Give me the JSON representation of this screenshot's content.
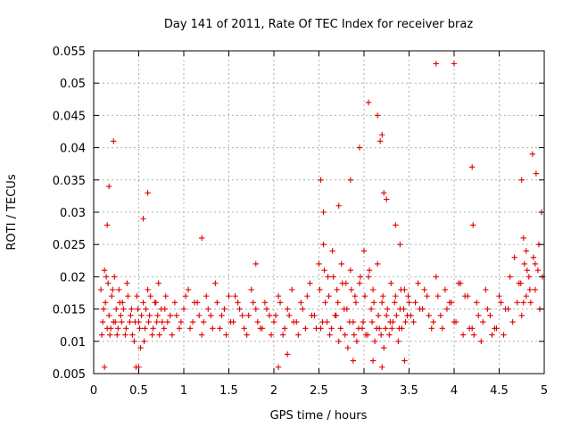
{
  "chart_data": {
    "type": "scatter",
    "title": "Day 141 of 2011, Rate Of TEC Index for receiver braz",
    "xlabel": "GPS time / hours",
    "ylabel": "ROTI / TECUs",
    "xlim": [
      0,
      5
    ],
    "ylim": [
      0.005,
      0.055
    ],
    "x_ticks": [
      0,
      0.5,
      1,
      1.5,
      2,
      2.5,
      3,
      3.5,
      4,
      4.5,
      5
    ],
    "x_tick_labels": [
      "0",
      "0.5",
      "1",
      "1.5",
      "2",
      "2.5",
      "3",
      "3.5",
      "4",
      "4.5",
      "5"
    ],
    "y_ticks": [
      0.005,
      0.01,
      0.015,
      0.02,
      0.025,
      0.03,
      0.035,
      0.04,
      0.045,
      0.05,
      0.055
    ],
    "y_tick_labels": [
      "0.005",
      "0.01",
      "0.015",
      "0.02",
      "0.025",
      "0.03",
      "0.035",
      "0.04",
      "0.045",
      "0.05",
      "0.055"
    ],
    "grid": true,
    "marker": "plus",
    "marker_color": "#e00000",
    "series": [
      {
        "x": [
          0.08,
          0.1,
          0.12,
          0.13,
          0.15,
          0.16,
          0.17,
          0.18,
          0.2,
          0.22,
          0.23,
          0.25,
          0.27,
          0.28,
          0.3,
          0.32,
          0.35,
          0.37,
          0.4,
          0.42,
          0.45,
          0.48,
          0.5,
          0.52,
          0.55,
          0.57,
          0.6,
          0.62,
          0.65,
          0.68,
          0.7,
          0.72,
          0.75,
          0.78,
          0.8,
          0.85,
          0.9,
          0.95,
          1.0,
          1.05,
          1.1,
          1.15,
          1.2,
          1.25,
          1.3,
          1.35,
          1.4,
          1.45,
          1.5,
          1.55,
          1.6,
          1.65,
          1.7,
          1.75,
          1.8,
          1.85,
          1.9,
          1.95,
          2.0,
          2.05,
          2.1,
          2.15,
          2.2,
          2.25,
          2.3,
          2.35,
          2.4,
          2.45,
          2.5,
          2.52,
          2.55,
          2.57,
          2.6,
          2.62,
          2.65,
          2.68,
          2.7,
          2.72,
          2.75,
          2.78,
          2.8,
          2.82,
          2.85,
          2.88,
          2.9,
          2.92,
          2.95,
          2.98,
          3.0,
          3.02,
          3.05,
          3.08,
          3.1,
          3.12,
          3.15,
          3.17,
          3.2,
          3.22,
          3.25,
          3.28,
          3.3,
          3.32,
          3.35,
          3.38,
          3.4,
          3.42,
          3.45,
          3.48,
          3.5,
          3.55,
          3.6,
          3.65,
          3.7,
          3.75,
          3.8,
          3.85,
          3.9,
          3.95,
          4.0,
          4.05,
          4.1,
          4.15,
          4.2,
          4.25,
          4.3,
          4.35,
          4.4,
          4.45,
          4.5,
          4.55,
          4.6,
          4.65,
          4.7,
          4.72,
          4.75,
          4.78,
          4.8,
          4.83,
          4.85,
          4.88,
          4.9,
          4.93,
          4.95,
          4.98,
          0.09,
          0.11,
          0.14,
          0.19,
          0.21,
          0.24,
          0.26,
          0.29,
          0.31,
          0.33,
          0.36,
          0.38,
          0.41,
          0.43,
          0.46,
          0.49,
          0.51,
          0.53,
          0.56,
          0.58,
          0.61,
          0.63,
          0.66,
          0.69,
          0.71,
          0.73,
          0.76,
          0.79,
          0.82,
          0.87,
          0.92,
          0.97,
          1.02,
          1.07,
          1.12,
          1.17,
          1.22,
          1.27,
          1.32,
          1.37,
          1.42,
          1.47,
          1.52,
          1.57,
          1.62,
          1.67,
          1.72,
          1.77,
          1.82,
          1.87,
          1.92,
          1.97,
          2.02,
          2.07,
          2.12,
          2.17,
          2.22,
          2.27,
          2.32,
          2.37,
          2.42,
          2.47,
          2.51,
          2.54,
          2.56,
          2.59,
          2.61,
          2.64,
          2.66,
          2.69,
          2.71,
          2.74,
          2.76,
          2.79,
          2.81,
          2.84,
          2.86,
          2.89,
          2.91,
          2.94,
          2.96,
          2.99,
          3.01,
          3.04,
          3.06,
          3.09,
          3.11,
          3.14,
          3.16,
          3.19,
          3.21,
          3.24,
          3.26,
          3.29,
          3.31,
          3.34,
          3.36,
          3.39,
          3.41,
          3.44,
          3.46,
          3.49,
          3.52,
          3.57,
          3.62,
          3.67,
          3.72,
          3.77,
          3.82,
          3.87,
          3.92,
          3.97,
          4.02,
          4.07,
          4.12,
          4.17,
          4.22,
          4.27,
          4.32,
          4.37,
          4.42,
          4.47,
          4.52,
          4.57,
          4.62,
          4.67,
          4.74,
          4.77,
          4.81,
          4.84,
          4.87,
          4.91,
          4.94,
          4.97,
          0.15,
          0.17,
          0.22,
          0.55,
          0.6,
          2.52,
          2.55,
          2.72,
          2.85,
          2.95,
          3.05,
          3.15,
          3.18,
          3.2,
          3.22,
          3.25,
          3.35,
          3.4,
          3.8,
          4.0,
          4.2,
          4.21,
          4.75,
          4.77,
          4.8,
          4.9,
          1.2,
          1.8,
          2.15,
          2.05,
          0.5,
          3.1,
          3.2,
          2.88,
          3.45,
          0.12,
          0.47
        ],
        "y": [
          0.018,
          0.013,
          0.021,
          0.016,
          0.012,
          0.019,
          0.014,
          0.011,
          0.017,
          0.013,
          0.02,
          0.015,
          0.012,
          0.018,
          0.014,
          0.016,
          0.011,
          0.019,
          0.013,
          0.015,
          0.01,
          0.017,
          0.013,
          0.009,
          0.016,
          0.012,
          0.018,
          0.014,
          0.011,
          0.016,
          0.013,
          0.019,
          0.015,
          0.012,
          0.017,
          0.014,
          0.016,
          0.012,
          0.015,
          0.018,
          0.013,
          0.016,
          0.011,
          0.017,
          0.014,
          0.019,
          0.012,
          0.015,
          0.017,
          0.013,
          0.016,
          0.014,
          0.011,
          0.018,
          0.015,
          0.012,
          0.016,
          0.014,
          0.013,
          0.017,
          0.011,
          0.015,
          0.018,
          0.013,
          0.016,
          0.012,
          0.019,
          0.014,
          0.022,
          0.012,
          0.025,
          0.016,
          0.02,
          0.011,
          0.024,
          0.014,
          0.018,
          0.01,
          0.022,
          0.015,
          0.019,
          0.009,
          0.021,
          0.013,
          0.017,
          0.01,
          0.019,
          0.012,
          0.024,
          0.011,
          0.02,
          0.015,
          0.018,
          0.01,
          0.022,
          0.012,
          0.016,
          0.009,
          0.014,
          0.011,
          0.019,
          0.013,
          0.017,
          0.01,
          0.015,
          0.012,
          0.018,
          0.014,
          0.016,
          0.013,
          0.019,
          0.015,
          0.017,
          0.012,
          0.02,
          0.014,
          0.018,
          0.016,
          0.013,
          0.019,
          0.011,
          0.017,
          0.012,
          0.016,
          0.01,
          0.018,
          0.014,
          0.012,
          0.017,
          0.011,
          0.015,
          0.013,
          0.016,
          0.019,
          0.014,
          0.022,
          0.017,
          0.02,
          0.016,
          0.023,
          0.018,
          0.021,
          0.015,
          0.02,
          0.011,
          0.015,
          0.02,
          0.012,
          0.018,
          0.013,
          0.011,
          0.016,
          0.013,
          0.015,
          0.012,
          0.017,
          0.014,
          0.011,
          0.013,
          0.015,
          0.012,
          0.014,
          0.01,
          0.015,
          0.013,
          0.017,
          0.012,
          0.016,
          0.014,
          0.011,
          0.013,
          0.015,
          0.013,
          0.011,
          0.014,
          0.013,
          0.017,
          0.012,
          0.016,
          0.014,
          0.013,
          0.015,
          0.012,
          0.016,
          0.014,
          0.011,
          0.013,
          0.017,
          0.015,
          0.012,
          0.014,
          0.016,
          0.013,
          0.012,
          0.015,
          0.011,
          0.014,
          0.016,
          0.012,
          0.014,
          0.013,
          0.011,
          0.015,
          0.017,
          0.014,
          0.012,
          0.018,
          0.013,
          0.021,
          0.013,
          0.017,
          0.012,
          0.02,
          0.014,
          0.016,
          0.012,
          0.019,
          0.011,
          0.015,
          0.013,
          0.018,
          0.011,
          0.016,
          0.012,
          0.02,
          0.013,
          0.017,
          0.011,
          0.021,
          0.013,
          0.016,
          0.012,
          0.014,
          0.011,
          0.017,
          0.012,
          0.015,
          0.013,
          0.012,
          0.016,
          0.014,
          0.012,
          0.018,
          0.015,
          0.013,
          0.017,
          0.014,
          0.016,
          0.015,
          0.018,
          0.014,
          0.013,
          0.017,
          0.012,
          0.015,
          0.016,
          0.013,
          0.019,
          0.017,
          0.012,
          0.011,
          0.014,
          0.013,
          0.015,
          0.011,
          0.012,
          0.016,
          0.015,
          0.02,
          0.023,
          0.019,
          0.016,
          0.021,
          0.018,
          0.039,
          0.036,
          0.025,
          0.03,
          0.028,
          0.034,
          0.041,
          0.029,
          0.033,
          0.035,
          0.03,
          0.031,
          0.035,
          0.04,
          0.047,
          0.045,
          0.041,
          0.042,
          0.033,
          0.032,
          0.028,
          0.025,
          0.053,
          0.053,
          0.037,
          0.028,
          0.035,
          0.026,
          0.024,
          0.022,
          0.026,
          0.022,
          0.008,
          0.006,
          0.006,
          0.007,
          0.006,
          0.007,
          0.007,
          0.006,
          0.006
        ]
      }
    ]
  }
}
